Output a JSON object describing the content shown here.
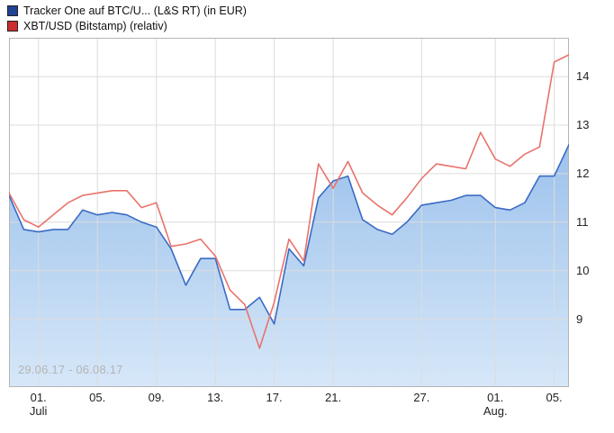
{
  "legend": [
    {
      "label": "Tracker One auf BTC/U... (L&S RT) (in EUR)",
      "color": "#1f4496"
    },
    {
      "label": "XBT/USD (Bitstamp) (relativ)",
      "color": "#cc2d2d"
    }
  ],
  "chart_data": {
    "type": "line",
    "title": "",
    "watermark": "29.06.17 - 06.08.17",
    "ylim": [
      7.6,
      14.8
    ],
    "yticks": [
      9,
      10,
      11,
      12,
      13,
      14
    ],
    "grid": true,
    "legend_position": "top-left",
    "x_dates": [
      "29.06.",
      "30.06.",
      "01.07.",
      "02.07.",
      "03.07.",
      "04.07.",
      "05.07.",
      "06.07.",
      "07.07.",
      "08.07.",
      "09.07.",
      "10.07.",
      "11.07.",
      "12.07.",
      "13.07.",
      "14.07.",
      "15.07.",
      "16.07.",
      "17.07.",
      "18.07.",
      "19.07.",
      "20.07.",
      "21.07.",
      "22.07.",
      "23.07.",
      "24.07.",
      "25.07.",
      "26.07.",
      "27.07.",
      "28.07.",
      "29.07.",
      "30.07.",
      "31.07.",
      "01.08.",
      "02.08.",
      "03.08.",
      "04.08.",
      "05.08.",
      "06.08."
    ],
    "xticks": [
      {
        "index": 2,
        "label": "01.",
        "sub": "Juli"
      },
      {
        "index": 6,
        "label": "05."
      },
      {
        "index": 10,
        "label": "09."
      },
      {
        "index": 14,
        "label": "13."
      },
      {
        "index": 18,
        "label": "17."
      },
      {
        "index": 22,
        "label": "21."
      },
      {
        "index": 28,
        "label": "27."
      },
      {
        "index": 33,
        "label": "01.",
        "sub": "Aug."
      },
      {
        "index": 37,
        "label": "05."
      }
    ],
    "series": [
      {
        "name": "Tracker One auf BTC/U... (L&S RT) (in EUR)",
        "color": "#3a6bc4",
        "fill": true,
        "fill_top": "#9dc2ec",
        "fill_bottom": "#d6e7f8",
        "values": [
          11.55,
          10.85,
          10.8,
          10.85,
          10.85,
          11.25,
          11.15,
          11.2,
          11.15,
          11.0,
          10.9,
          10.45,
          9.7,
          10.25,
          10.25,
          9.2,
          9.2,
          9.45,
          8.9,
          10.45,
          10.1,
          11.5,
          11.85,
          11.95,
          11.05,
          10.85,
          10.75,
          11.0,
          11.35,
          11.4,
          11.45,
          11.55,
          11.55,
          11.3,
          11.25,
          11.4,
          11.95,
          11.95,
          12.6
        ]
      },
      {
        "name": "XBT/USD (Bitstamp) (relativ)",
        "color": "#e8736c",
        "fill": false,
        "values": [
          11.6,
          11.05,
          10.9,
          11.15,
          11.4,
          11.55,
          11.6,
          11.65,
          11.65,
          11.3,
          11.4,
          10.5,
          10.55,
          10.65,
          10.3,
          9.6,
          9.3,
          8.4,
          9.35,
          10.65,
          10.2,
          12.2,
          11.7,
          12.25,
          11.6,
          11.35,
          11.15,
          11.5,
          11.9,
          12.2,
          12.15,
          12.1,
          12.85,
          12.3,
          12.15,
          12.4,
          12.55,
          14.3,
          14.45
        ]
      }
    ]
  }
}
